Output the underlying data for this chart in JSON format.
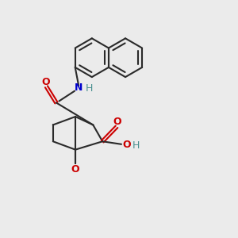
{
  "bg_color": "#ebebeb",
  "bond_color": "#2a2a2a",
  "oxygen_color": "#cc0000",
  "nitrogen_color": "#0000cc",
  "hydrogen_color": "#4a9090",
  "figsize": [
    3.0,
    3.0
  ],
  "dpi": 100,
  "xlim": [
    0,
    10
  ],
  "ylim": [
    0,
    10
  ],
  "bond_lw": 1.5,
  "ring_r": 0.82
}
